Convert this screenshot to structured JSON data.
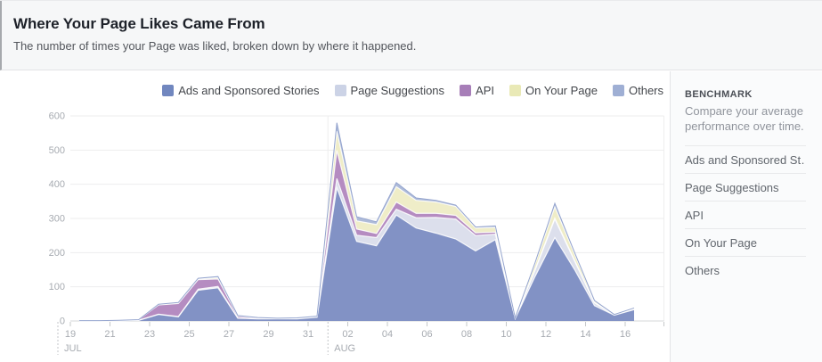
{
  "header": {
    "title": "Where Your Page Likes Came From",
    "subtitle": "The number of times your Page was liked, broken down by where it happened."
  },
  "chart_data": {
    "type": "area",
    "stacked": true,
    "title": "Where Your Page Likes Came From",
    "ylim": [
      0,
      600
    ],
    "yticks": [
      0,
      100,
      200,
      300,
      400,
      500,
      600
    ],
    "grid": "horizontal",
    "legend_position": "top-right",
    "categories": [
      "Jul 19",
      "Jul 20",
      "Jul 21",
      "Jul 22",
      "Jul 23",
      "Jul 24",
      "Jul 25",
      "Jul 26",
      "Jul 27",
      "Jul 28",
      "Jul 29",
      "Jul 30",
      "Jul 31",
      "Aug 01",
      "Aug 02",
      "Aug 03",
      "Aug 04",
      "Aug 05",
      "Aug 06",
      "Aug 07",
      "Aug 08",
      "Aug 09",
      "Aug 10",
      "Aug 11",
      "Aug 12",
      "Aug 13",
      "Aug 14",
      "Aug 15",
      "Aug 16"
    ],
    "x_tick_labels": [
      "19",
      "21",
      "23",
      "25",
      "27",
      "29",
      "31",
      "02",
      "04",
      "06",
      "08",
      "10",
      "12",
      "14",
      "16"
    ],
    "months": [
      {
        "label": "JUL",
        "index": 0
      },
      {
        "label": "AUG",
        "index": 13
      }
    ],
    "series": [
      {
        "name": "Ads and Sponsored Stories",
        "color": "#7187bf",
        "fill": "#8292c5",
        "values": [
          1,
          1,
          1,
          2,
          19,
          12,
          90,
          97,
          8,
          6,
          6,
          6,
          11,
          390,
          233,
          220,
          310,
          272,
          257,
          240,
          205,
          238,
          7,
          130,
          244,
          150,
          45,
          17,
          33
        ]
      },
      {
        "name": "Page Suggestions",
        "color": "#ccd3e6",
        "fill": "#dcdfec",
        "values": [
          0,
          0,
          0,
          0,
          1,
          1,
          3,
          4,
          1,
          1,
          1,
          1,
          1,
          27,
          18,
          24,
          17,
          30,
          46,
          58,
          45,
          16,
          1,
          18,
          54,
          25,
          8,
          1,
          2
        ]
      },
      {
        "name": "API",
        "color": "#a77eb8",
        "fill": "#b58cc1",
        "values": [
          0,
          0,
          1,
          2,
          27,
          38,
          28,
          22,
          5,
          2,
          0,
          0,
          1,
          82,
          18,
          12,
          21,
          13,
          12,
          11,
          8,
          6,
          0,
          2,
          3,
          2,
          1,
          0,
          0
        ]
      },
      {
        "name": "On Your Page",
        "color": "#e9e9b6",
        "fill": "#efedc8",
        "values": [
          0,
          0,
          0,
          0,
          1,
          2,
          2,
          4,
          1,
          1,
          1,
          2,
          1,
          56,
          24,
          26,
          45,
          38,
          33,
          26,
          14,
          14,
          1,
          16,
          33,
          18,
          5,
          1,
          3
        ]
      },
      {
        "name": "Others",
        "color": "#9fafd4",
        "fill": "#aebbd9",
        "values": [
          0,
          0,
          0,
          0,
          1,
          1,
          2,
          3,
          1,
          0,
          0,
          0,
          0,
          25,
          12,
          8,
          12,
          7,
          5,
          4,
          3,
          4,
          0,
          4,
          10,
          5,
          1,
          0,
          0
        ]
      }
    ]
  },
  "benchmark": {
    "title": "BENCHMARK",
    "description": "Compare your average performance over time.",
    "items": [
      "Ads and Sponsored St…",
      "Page Suggestions",
      "API",
      "On Your Page",
      "Others"
    ]
  }
}
